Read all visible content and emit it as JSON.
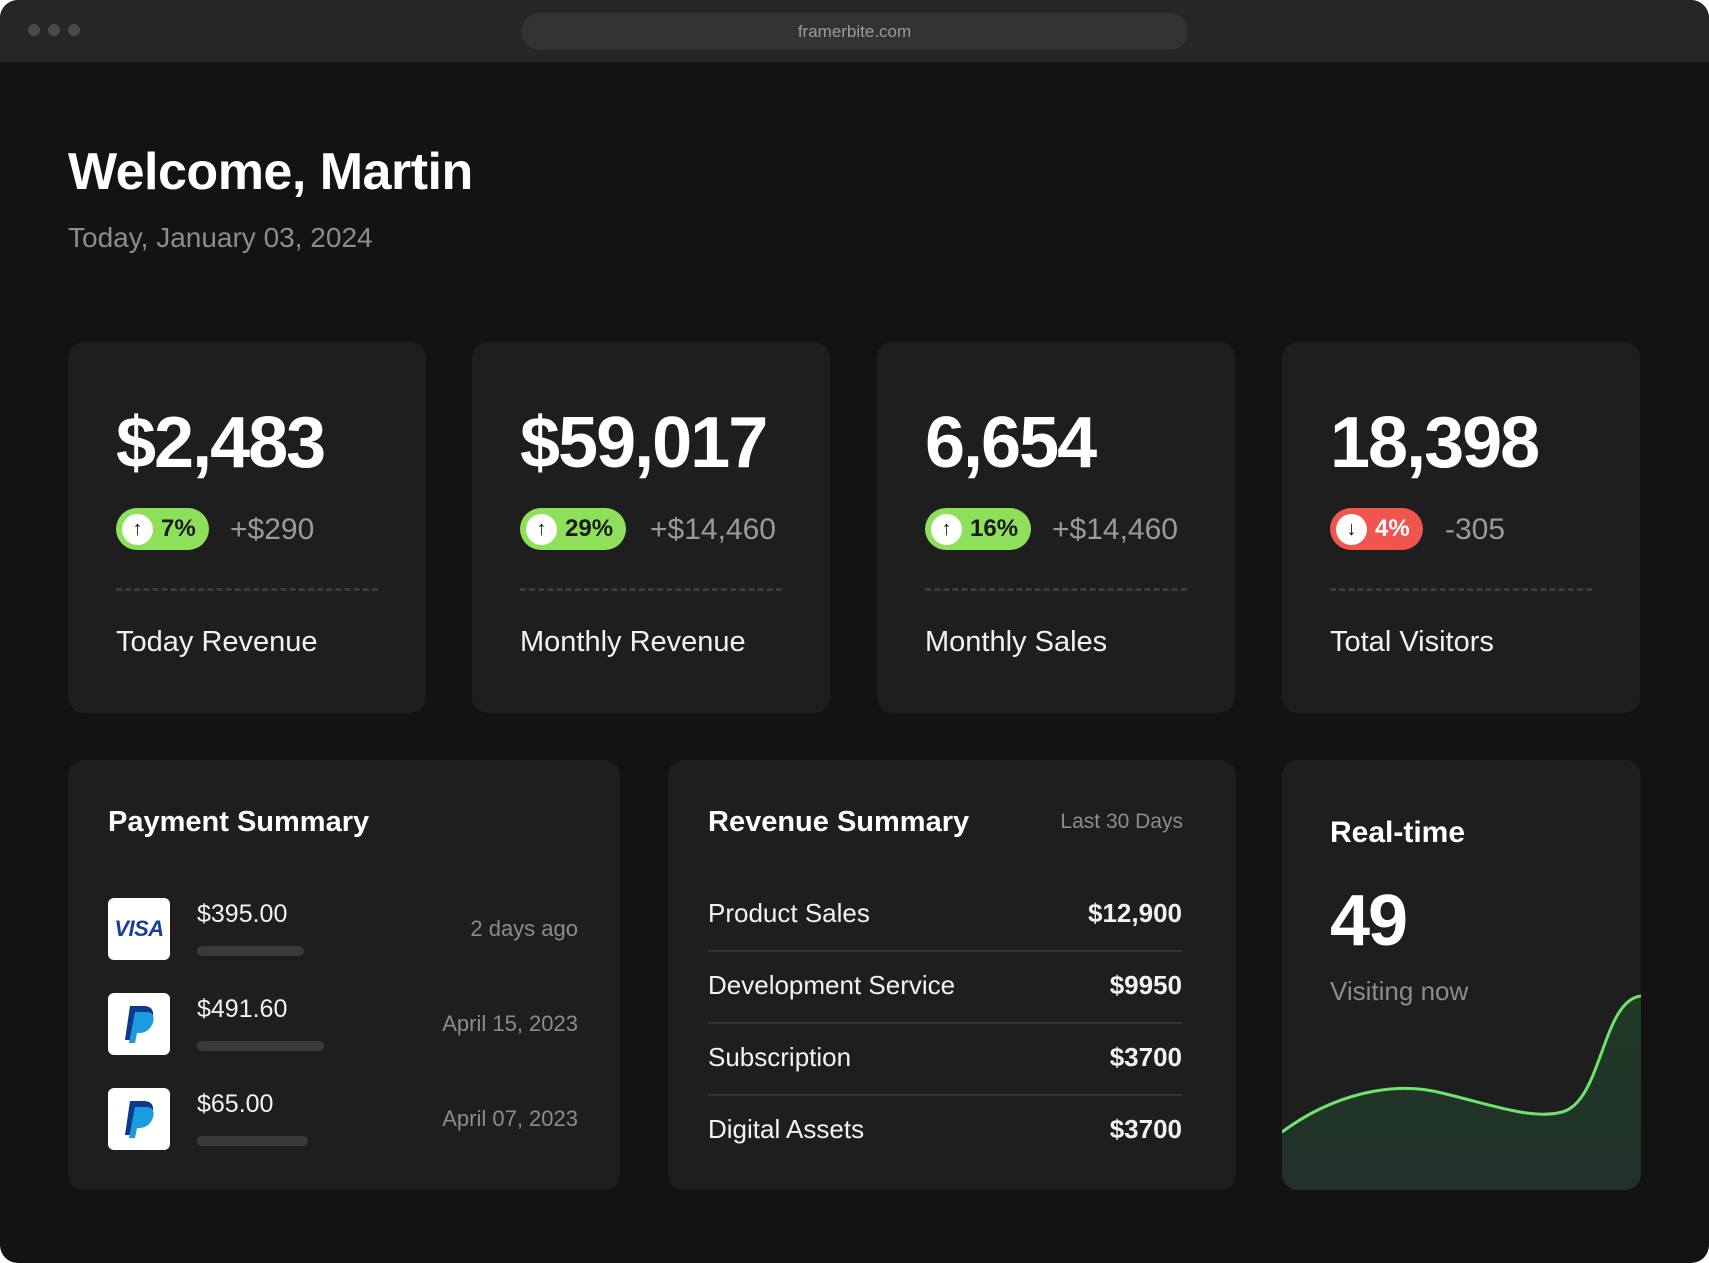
{
  "browser": {
    "url": "framerbite.com"
  },
  "header": {
    "welcome": "Welcome, Martin",
    "date": "Today, January 03, 2024"
  },
  "stats": [
    {
      "value": "$2,483",
      "change": "7%",
      "direction": "up",
      "delta": "+$290",
      "label": "Today Revenue"
    },
    {
      "value": "$59,017",
      "change": "29%",
      "direction": "up",
      "delta": "+$14,460",
      "label": "Monthly Revenue"
    },
    {
      "value": "6,654",
      "change": "16%",
      "direction": "up",
      "delta": "+$14,460",
      "label": "Monthly Sales"
    },
    {
      "value": "18,398",
      "change": "4%",
      "direction": "down",
      "delta": "-305",
      "label": "Total Visitors"
    }
  ],
  "payment_summary": {
    "title": "Payment Summary",
    "items": [
      {
        "method": "visa",
        "logo_text": "VISA",
        "amount": "$395.00",
        "date": "2 days ago",
        "progress": 0.5
      },
      {
        "method": "paypal",
        "logo_text": "P",
        "amount": "$491.60",
        "date": "April 15, 2023",
        "progress": 0.6
      },
      {
        "method": "paypal",
        "logo_text": "P",
        "amount": "$65.00",
        "date": "April 07, 2023",
        "progress": 0.52
      }
    ]
  },
  "revenue_summary": {
    "title": "Revenue Summary",
    "period": "Last 30 Days",
    "items": [
      {
        "name": "Product Sales",
        "value": "$12,900"
      },
      {
        "name": "Development Service",
        "value": "$9950"
      },
      {
        "name": "Subscription",
        "value": "$3700"
      },
      {
        "name": "Digital Assets",
        "value": "$3700"
      }
    ]
  },
  "realtime": {
    "title": "Real-time",
    "count": "49",
    "subtitle": "Visiting now"
  },
  "colors": {
    "background": "#131313",
    "card": "#1e1e1e",
    "up": "#8ee05a",
    "down": "#f0564f",
    "chart_line": "#6ee36e"
  },
  "icons": {
    "up": "arrow-up-icon",
    "down": "arrow-down-icon"
  }
}
